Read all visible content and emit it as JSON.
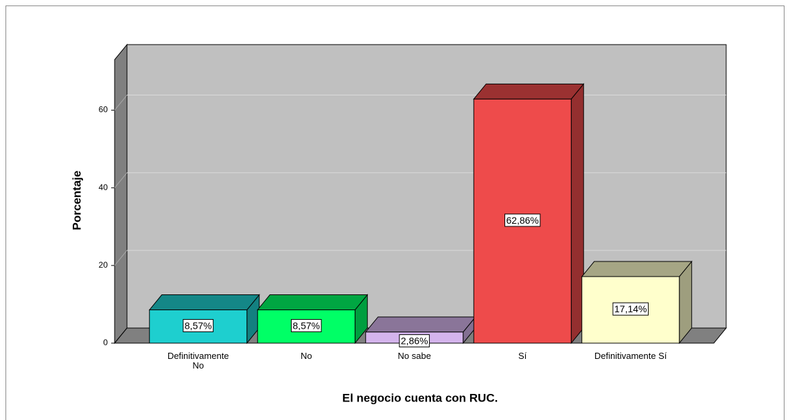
{
  "chart_data": {
    "type": "bar3d",
    "x_label": "El negocio cuenta con RUC.",
    "y_label": "Porcentaje",
    "categories": [
      "Definitivamente\nNo",
      "No",
      "No sabe",
      "Sí",
      "Definitivamente Sí"
    ],
    "values": [
      8.57,
      8.57,
      2.86,
      62.86,
      17.14
    ],
    "value_labels": [
      "8,57%",
      "8,57%",
      "2,86%",
      "62,86%",
      "17,14%"
    ],
    "colors": [
      "#1ecfcf",
      "#00ff66",
      "#d4b4ec",
      "#ee4b4b",
      "#ffffcc"
    ],
    "ylim": [
      0,
      73
    ],
    "yticks": [
      0,
      20,
      40,
      60
    ],
    "grid": true
  }
}
